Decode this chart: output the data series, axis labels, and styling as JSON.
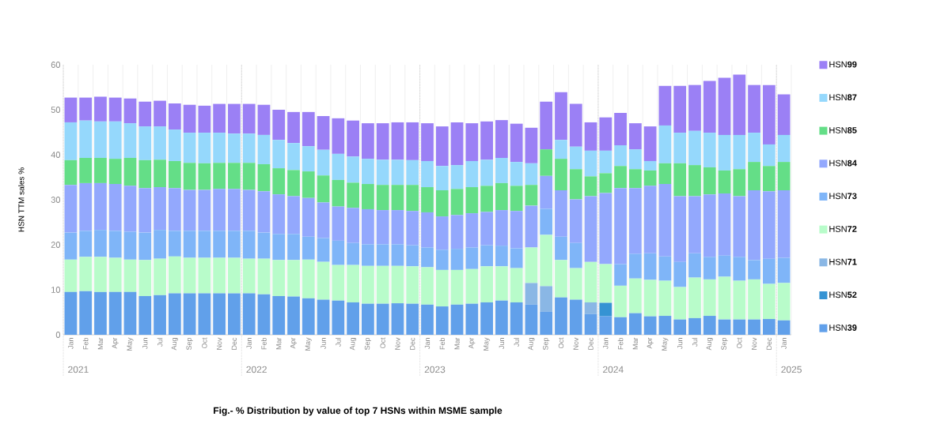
{
  "chart_data": {
    "type": "bar",
    "stacked": true,
    "ylabel": "HSN TTM sales %",
    "annotations": [
      "2021",
      "2022",
      "2023",
      "2024",
      "2025",
      "Fig.- % Distribution by value of top 7 HSNs within MSME sample"
    ],
    "categories": [
      "Jan",
      "Feb",
      "Mar",
      "Apr",
      "May",
      "Jun",
      "Jul",
      "Aug",
      "Sep",
      "Oct",
      "Nov",
      "Dec",
      "Jan",
      "Feb",
      "Mar",
      "Apr",
      "May",
      "Jun",
      "Jul",
      "Aug",
      "Sep",
      "Oct",
      "Nov",
      "Dec",
      "Jan",
      "Feb",
      "Mar",
      "Apr",
      "May",
      "Jun",
      "Jul",
      "Aug",
      "Sep",
      "Oct",
      "Nov",
      "Dec",
      "Jan",
      "Feb",
      "Mar",
      "Apr",
      "May",
      "Jun",
      "Jul",
      "Aug",
      "Sep",
      "Oct",
      "Nov",
      "Dec",
      "Jan"
    ],
    "ylim": [
      0,
      60
    ],
    "yticks": [
      0,
      10,
      20,
      30,
      40,
      50,
      60
    ],
    "grid": "x",
    "legend": "right",
    "series": [
      {
        "name": "HSN**39**",
        "color": "#61a0ea",
        "values": [
          9.5,
          9.7,
          9.5,
          9.5,
          9.5,
          8.6,
          8.8,
          9.2,
          9.2,
          9.2,
          9.2,
          9.2,
          9.2,
          9.0,
          8.6,
          8.5,
          8.1,
          7.8,
          7.6,
          7.2,
          6.9,
          6.9,
          7.0,
          6.9,
          6.7,
          6.3,
          6.7,
          6.9,
          7.2,
          7.6,
          7.2,
          6.7,
          5.1,
          8.3,
          7.8,
          4.6,
          4.1,
          3.9,
          4.8,
          4.1,
          4.2,
          3.4,
          3.7,
          4.2,
          3.4,
          3.4,
          3.4,
          3.5,
          3.2
        ]
      },
      {
        "name": "HSN**52**",
        "color": "#3593d3",
        "values": [
          null,
          null,
          null,
          null,
          null,
          null,
          null,
          null,
          null,
          null,
          null,
          null,
          null,
          null,
          null,
          null,
          null,
          null,
          null,
          null,
          null,
          null,
          null,
          null,
          null,
          null,
          null,
          null,
          null,
          null,
          null,
          null,
          null,
          null,
          null,
          null,
          3.0,
          null,
          null,
          null,
          null,
          null,
          null,
          null,
          null,
          null,
          null,
          null,
          null
        ]
      },
      {
        "name": "HSN**71**",
        "color": "#8ab7e5",
        "values": [
          null,
          null,
          null,
          null,
          null,
          null,
          null,
          null,
          null,
          null,
          null,
          null,
          null,
          null,
          null,
          null,
          null,
          null,
          null,
          null,
          null,
          null,
          null,
          null,
          null,
          null,
          null,
          null,
          null,
          null,
          null,
          4.8,
          5.7,
          null,
          null,
          2.6,
          null,
          null,
          null,
          null,
          null,
          null,
          null,
          null,
          null,
          null,
          null,
          null,
          null
        ]
      },
      {
        "name": "HSN**72**",
        "color": "#b8fcca",
        "values": [
          7.2,
          7.6,
          7.8,
          7.6,
          7.2,
          8.0,
          8.1,
          8.2,
          7.9,
          7.9,
          7.9,
          7.9,
          7.7,
          7.9,
          8.0,
          8.1,
          8.6,
          8.4,
          7.9,
          8.3,
          8.4,
          8.4,
          8.3,
          8.3,
          8.3,
          8.1,
          7.7,
          7.7,
          8.0,
          7.6,
          7.6,
          7.9,
          11.4,
          8.3,
          7.0,
          9.0,
          8.6,
          7.0,
          7.7,
          8.1,
          7.8,
          7.2,
          9.0,
          8.1,
          9.5,
          8.6,
          8.9,
          7.8,
          8.3
        ]
      },
      {
        "name": "HSN**73**",
        "color": "#7fb5f8",
        "values": [
          6.0,
          5.8,
          6.0,
          6.0,
          6.2,
          6.1,
          6.4,
          5.7,
          6.0,
          6.0,
          6.0,
          6.0,
          6.2,
          5.8,
          5.8,
          5.8,
          5.1,
          5.3,
          5.4,
          4.9,
          4.8,
          4.8,
          4.8,
          4.7,
          4.4,
          4.5,
          4.7,
          4.8,
          4.7,
          4.6,
          4.4,
          null,
          5.8,
          5.2,
          5.6,
          null,
          null,
          4.8,
          5.5,
          5.9,
          5.4,
          5.6,
          5.4,
          5.0,
          4.7,
          5.3,
          4.3,
          5.6,
          5.6
        ]
      },
      {
        "name": "HSN**84**",
        "color": "#93a8fd",
        "values": [
          10.6,
          10.6,
          10.4,
          10.4,
          10.2,
          9.9,
          9.5,
          9.5,
          9.1,
          9.1,
          9.3,
          9.3,
          9.1,
          9.2,
          8.8,
          8.4,
          8.6,
          7.9,
          7.6,
          7.8,
          7.8,
          7.6,
          7.6,
          7.6,
          7.8,
          7.4,
          7.5,
          7.6,
          7.4,
          7.9,
          8.3,
          9.3,
          7.3,
          10.3,
          9.7,
          14.6,
          15.8,
          16.9,
          14.6,
          15.0,
          16.1,
          14.6,
          12.7,
          13.9,
          13.8,
          13.5,
          15.5,
          15.0,
          15.0
        ]
      },
      {
        "name": "HSN**85**",
        "color": "#64de87",
        "values": [
          5.5,
          5.6,
          5.6,
          5.6,
          6.2,
          6.2,
          6.1,
          6.0,
          6.0,
          5.9,
          5.8,
          5.8,
          6.0,
          6.0,
          5.8,
          5.8,
          5.9,
          6.0,
          5.9,
          5.6,
          5.6,
          5.6,
          5.6,
          5.8,
          5.6,
          5.8,
          5.8,
          5.8,
          5.8,
          6.0,
          5.6,
          4.6,
          5.9,
          7.0,
          6.7,
          4.4,
          4.4,
          4.9,
          4.2,
          3.4,
          4.6,
          7.3,
          6.9,
          6.0,
          5.1,
          6.0,
          6.3,
          5.6,
          6.3
        ]
      },
      {
        "name": "HSN**87**",
        "color": "#95d8fc",
        "values": [
          8.4,
          8.3,
          8.1,
          8.3,
          7.7,
          7.5,
          7.4,
          7.0,
          6.7,
          6.8,
          6.7,
          6.5,
          6.5,
          6.5,
          6.3,
          6.0,
          5.6,
          5.7,
          5.8,
          5.8,
          5.6,
          5.6,
          5.6,
          5.5,
          5.8,
          5.4,
          5.3,
          5.8,
          5.8,
          5.6,
          5.3,
          4.8,
          null,
          4.2,
          5.0,
          5.7,
          5.0,
          4.6,
          4.4,
          2.1,
          8.4,
          6.8,
          7.6,
          7.7,
          7.9,
          7.6,
          6.5,
          4.8,
          6.0
        ]
      },
      {
        "name": "HSN**99**",
        "color": "#9b80f5",
        "values": [
          5.5,
          5.1,
          5.5,
          5.3,
          5.5,
          5.5,
          5.7,
          5.8,
          6.2,
          6.0,
          6.4,
          6.6,
          6.6,
          6.7,
          6.7,
          6.9,
          7.6,
          7.5,
          7.9,
          8.0,
          7.9,
          8.1,
          8.3,
          8.4,
          8.4,
          8.8,
          9.5,
          8.4,
          8.5,
          8.4,
          8.5,
          7.9,
          10.6,
          10.6,
          9.5,
          6.3,
          7.4,
          7.2,
          5.8,
          7.7,
          8.8,
          10.4,
          10.2,
          11.5,
          12.7,
          13.4,
          10.6,
          13.2,
          9.0
        ]
      }
    ]
  }
}
